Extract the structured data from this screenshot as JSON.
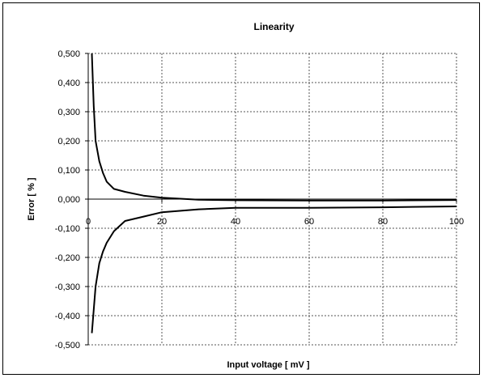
{
  "chart_data": {
    "type": "line",
    "title": "Linearity",
    "xlabel": "Input voltage [ mV ]",
    "ylabel": "Error [ % ]",
    "xlim": [
      0,
      100
    ],
    "ylim": [
      -0.5,
      0.5
    ],
    "x_ticks": [
      "0",
      "20",
      "40",
      "60",
      "80",
      "100"
    ],
    "y_ticks": [
      "0,500",
      "0,400",
      "0,300",
      "0,200",
      "0,100",
      "0,000",
      "-0,100",
      "-0,200",
      "-0,300",
      "-0,400",
      "-0,500"
    ],
    "grid": true,
    "legend": "none",
    "series": [
      {
        "color": "#000000",
        "x": [
          1,
          1.5,
          2,
          3,
          4,
          5,
          7,
          10,
          15,
          20,
          30,
          40,
          60,
          80,
          100
        ],
        "y": [
          0.5,
          0.32,
          0.2,
          0.13,
          0.09,
          0.06,
          0.035,
          0.025,
          0.012,
          0.005,
          -0.002,
          -0.004,
          -0.005,
          -0.005,
          -0.003
        ]
      },
      {
        "color": "#000000",
        "x": [
          1,
          1.5,
          2,
          3,
          4,
          5,
          7,
          10,
          15,
          20,
          30,
          40,
          60,
          80,
          100
        ],
        "y": [
          -0.46,
          -0.38,
          -0.3,
          -0.22,
          -0.18,
          -0.15,
          -0.11,
          -0.075,
          -0.06,
          -0.045,
          -0.035,
          -0.03,
          -0.03,
          -0.028,
          -0.025
        ]
      }
    ]
  }
}
